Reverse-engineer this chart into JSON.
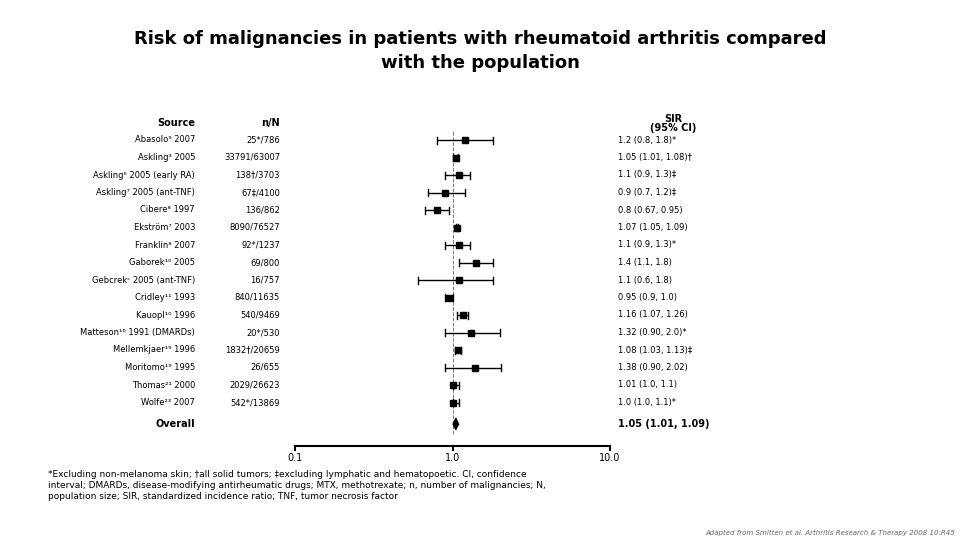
{
  "title": "Risk of malignancies in patients with rheumatoid arthritis compared\nwith the population",
  "studies": [
    {
      "label": "Abasolo⁹ 2007",
      "nN": "25*/786",
      "sir": 1.2,
      "lo": 0.8,
      "hi": 1.8,
      "sir_text": "1.2 (0.8, 1.8)*"
    },
    {
      "label": "Askling³ 2005",
      "nN": "33791/63007",
      "sir": 1.05,
      "lo": 1.01,
      "hi": 1.08,
      "sir_text": "1.05 (1.01, 1.08)†"
    },
    {
      "label": "Askling⁵ 2005 (early RA)",
      "nN": "138†/3703",
      "sir": 1.1,
      "lo": 0.9,
      "hi": 1.3,
      "sir_text": "1.1 (0.9, 1.3)‡"
    },
    {
      "label": "Askling⁷ 2005 (ant-TNF)",
      "nN": "67‡/4100",
      "sir": 0.9,
      "lo": 0.7,
      "hi": 1.2,
      "sir_text": "0.9 (0.7, 1.2)‡"
    },
    {
      "label": "Cibere⁸ 1997",
      "nN": "136/862",
      "sir": 0.8,
      "lo": 0.67,
      "hi": 0.95,
      "sir_text": "0.8 (0.67, 0.95)"
    },
    {
      "label": "Ekström⁷ 2003",
      "nN": "8090/76527",
      "sir": 1.07,
      "lo": 1.05,
      "hi": 1.09,
      "sir_text": "1.07 (1.05, 1.09)"
    },
    {
      "label": "Franklin⁸ 2007",
      "nN": "92*/1237",
      "sir": 1.1,
      "lo": 0.9,
      "hi": 1.3,
      "sir_text": "1.1 (0.9, 1.3)*"
    },
    {
      "label": "Gaborek¹⁰ 2005",
      "nN": "69/800",
      "sir": 1.4,
      "lo": 1.1,
      "hi": 1.8,
      "sir_text": "1.4 (1.1, 1.8)"
    },
    {
      "label": "Gebcrekᶜ 2005 (ant-TNF)",
      "nN": "16/757",
      "sir": 1.1,
      "lo": 0.6,
      "hi": 1.8,
      "sir_text": "1.1 (0.6, 1.8)"
    },
    {
      "label": "Cridley¹¹ 1993",
      "nN": "840/11635",
      "sir": 0.95,
      "lo": 0.9,
      "hi": 1.0,
      "sir_text": "0.95 (0.9, 1.0)"
    },
    {
      "label": "Kauopl¹⁰ 1996",
      "nN": "540/9469",
      "sir": 1.16,
      "lo": 1.07,
      "hi": 1.26,
      "sir_text": "1.16 (1.07, 1.26)"
    },
    {
      "label": "Matteson¹⁶ 1991 (DMARDs)",
      "nN": "20*/530",
      "sir": 1.32,
      "lo": 0.9,
      "hi": 2.0,
      "sir_text": "1.32 (0.90, 2.0)*"
    },
    {
      "label": "Mellemkjaer¹⁹ 1996",
      "nN": "1832†/20659",
      "sir": 1.08,
      "lo": 1.03,
      "hi": 1.13,
      "sir_text": "1.08 (1.03, 1.13)‡"
    },
    {
      "label": "Moritomo¹⁹ 1995",
      "nN": "26/655",
      "sir": 1.38,
      "lo": 0.9,
      "hi": 2.02,
      "sir_text": "1.38 (0.90, 2.02)"
    },
    {
      "label": "Thomas²¹ 2000",
      "nN": "2029/26623",
      "sir": 1.01,
      "lo": 1.0,
      "hi": 1.1,
      "sir_text": "1.01 (1.0, 1.1)"
    },
    {
      "label": "Wolfe²³ 2007",
      "nN": "542*/13869",
      "sir": 1.0,
      "lo": 1.0,
      "hi": 1.1,
      "sir_text": "1.0 (1.0, 1.1)*"
    }
  ],
  "overall": {
    "label": "Overall",
    "sir": 1.05,
    "lo": 1.01,
    "hi": 1.09,
    "sir_text": "1.05 (1.01, 1.09)"
  },
  "xmin": 0.1,
  "xmax": 10.0,
  "footnote1": "*Excluding non-melanoma skin; †all solid tumors; ‡excluding lymphatic and hematopoetic. CI, confidence",
  "footnote2": "interval; DMARDs, disease-modifying antirheumatic drugs; MTX, methotrexate; n, number of malignancies; N,",
  "footnote3": "population size; SIR, standardized incidence ratio; TNF, tumor necrosis factor",
  "credit": "Adapted from Smitten et al. Arthritis Research & Therapy 2008 10:R45",
  "bg_color": "#ffffff",
  "text_color": "#000000"
}
